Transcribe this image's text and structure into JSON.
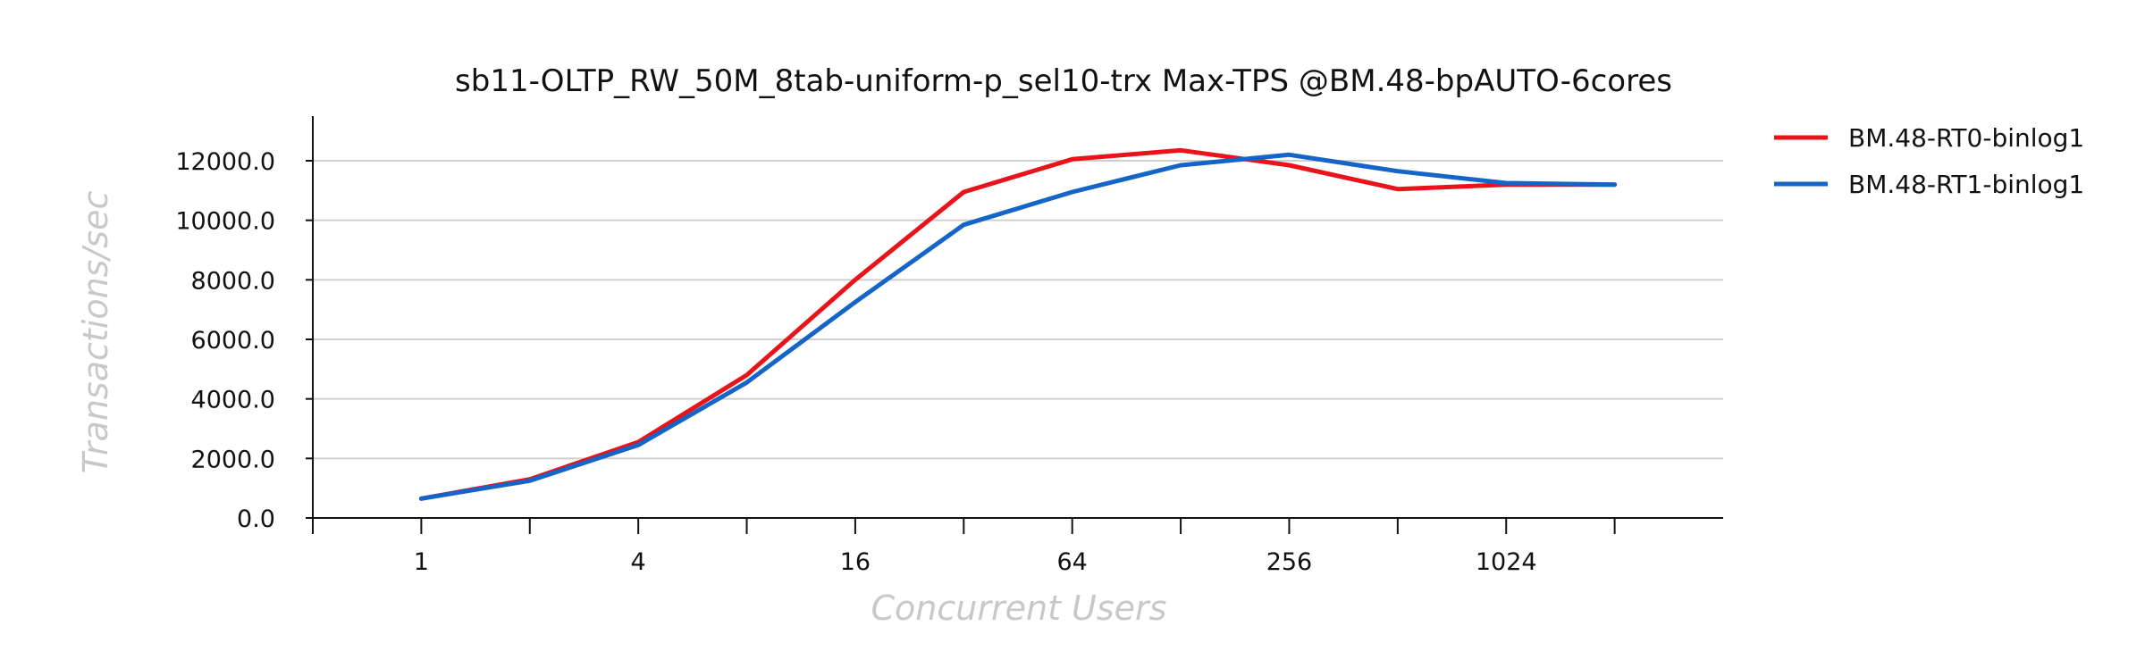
{
  "chart_data": {
    "type": "line",
    "title": "sb11-OLTP_RW_50M_8tab-uniform-p_sel10-trx Max-TPS @BM.48-bpAUTO-6cores",
    "xlabel": "Concurrent Users",
    "ylabel": "Transactions/sec",
    "x": [
      1,
      2,
      4,
      8,
      16,
      32,
      64,
      128,
      256,
      512,
      1024,
      2048
    ],
    "x_tick_labels": [
      "1",
      "4",
      "16",
      "64",
      "256",
      "1024"
    ],
    "x_tick_values": [
      1,
      4,
      16,
      64,
      256,
      1024
    ],
    "x_scale": "log2",
    "xlim": [
      0.5,
      4096
    ],
    "ylim": [
      0,
      13500
    ],
    "y_ticks": [
      0,
      2000,
      4000,
      6000,
      8000,
      10000,
      12000
    ],
    "y_tick_labels": [
      "0.0",
      "2000.0",
      "4000.0",
      "6000.0",
      "8000.0",
      "10000.0",
      "12000.0"
    ],
    "grid": "horizontal",
    "legend_position": "top-right",
    "series": [
      {
        "name": "BM.48-RT0-binlog1",
        "color": "#e8141a",
        "values": [
          650,
          1300,
          2550,
          4800,
          8000,
          10950,
          12050,
          12350,
          11850,
          11050,
          11200,
          11200
        ]
      },
      {
        "name": "BM.48-RT1-binlog1",
        "color": "#1565c8",
        "values": [
          650,
          1250,
          2450,
          4550,
          7250,
          9850,
          10950,
          11850,
          12200,
          11650,
          11250,
          11200
        ]
      }
    ]
  }
}
